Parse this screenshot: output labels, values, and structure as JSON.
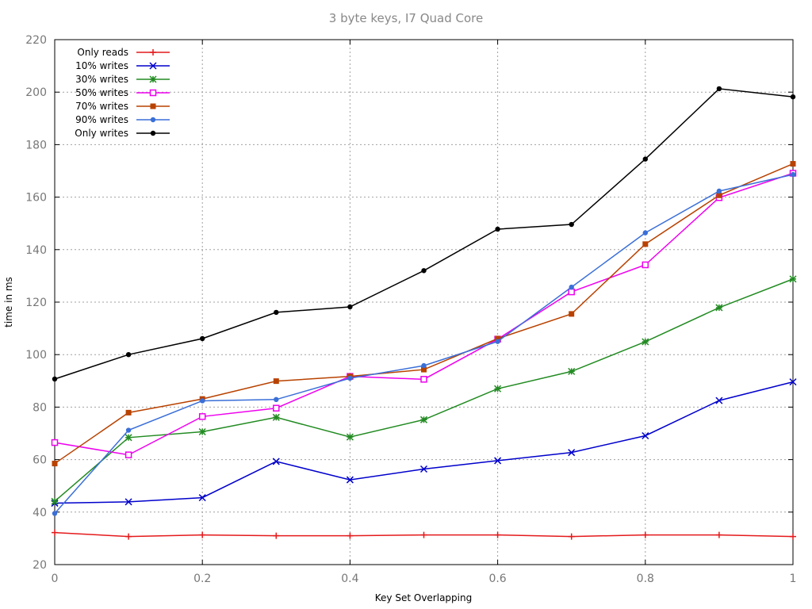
{
  "chart_data": {
    "type": "line",
    "title": "3 byte keys, I7 Quad Core",
    "xlabel": "Key Set Overlapping",
    "ylabel": "time in ms",
    "xlim": [
      0,
      1
    ],
    "ylim": [
      20,
      220
    ],
    "x_ticks": [
      "0",
      "0.2",
      "0.4",
      "0.6",
      "0.8",
      "1"
    ],
    "x_tick_values": [
      0,
      0.2,
      0.4,
      0.6,
      0.8,
      1
    ],
    "y_ticks": [
      "20",
      "40",
      "60",
      "80",
      "100",
      "120",
      "140",
      "160",
      "180",
      "200",
      "220"
    ],
    "y_tick_values": [
      20,
      40,
      60,
      80,
      100,
      120,
      140,
      160,
      180,
      200,
      220
    ],
    "grid": true,
    "legend_position": "top-left",
    "x": [
      0,
      0.1,
      0.2,
      0.3,
      0.4,
      0.5,
      0.6,
      0.7,
      0.8,
      0.9,
      1.0
    ],
    "series": [
      {
        "name": "Only reads",
        "color": "#e41a1c",
        "marker": "plus",
        "values": [
          32.2,
          30.7,
          31.3,
          31.0,
          31.0,
          31.3,
          31.3,
          30.7,
          31.3,
          31.3,
          30.7
        ]
      },
      {
        "name": "10% writes",
        "color": "#0000cc",
        "marker": "x",
        "values": [
          43.4,
          43.9,
          45.5,
          59.3,
          52.3,
          56.4,
          59.6,
          62.7,
          69.1,
          82.5,
          89.6
        ]
      },
      {
        "name": "30% writes",
        "color": "#228b22",
        "marker": "star",
        "values": [
          44.1,
          68.4,
          70.6,
          76.1,
          68.6,
          75.2,
          87.0,
          93.6,
          104.9,
          117.9,
          128.8
        ]
      },
      {
        "name": "50% writes",
        "color": "#ee00ee",
        "marker": "square-open",
        "values": [
          66.5,
          61.8,
          76.4,
          79.6,
          91.7,
          90.6,
          105.9,
          123.9,
          134.2,
          159.8,
          169.1
        ]
      },
      {
        "name": "70% writes",
        "color": "#b84200",
        "marker": "square-filled",
        "values": [
          58.5,
          77.9,
          83.1,
          89.9,
          91.7,
          94.3,
          106.1,
          115.5,
          142.1,
          160.7,
          172.7
        ]
      },
      {
        "name": "90% writes",
        "color": "#3a6fd8",
        "marker": "circle",
        "values": [
          39.5,
          71.2,
          82.4,
          82.9,
          91.0,
          95.8,
          105.0,
          125.7,
          146.4,
          162.3,
          168.6
        ]
      },
      {
        "name": "Only writes",
        "color": "#000000",
        "marker": "circle",
        "values": [
          90.7,
          100.0,
          106.1,
          116.1,
          118.2,
          132.0,
          147.8,
          149.6,
          174.5,
          201.3,
          198.2
        ]
      }
    ]
  }
}
